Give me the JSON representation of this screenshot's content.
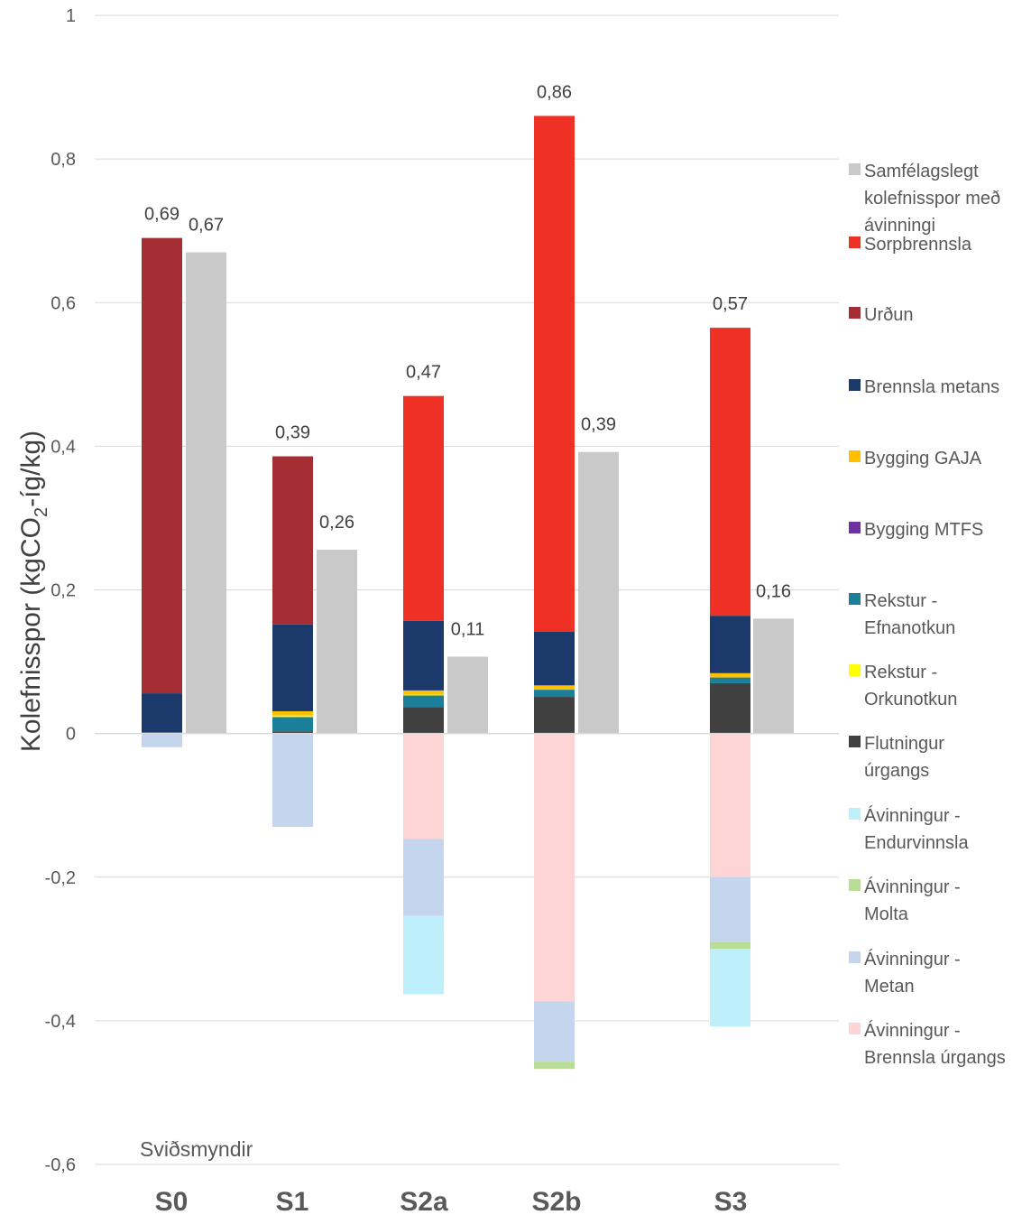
{
  "chart_data": {
    "type": "bar",
    "stacked": true,
    "ylabel": "Kolefnisspor (kgCO2-íg/kg)",
    "ylabel_parts": {
      "before": "Kolefnisspor (kgCO",
      "sub": "2",
      "after": "-íg/kg)"
    },
    "xlabel": "Sviðsmyndir",
    "ylim": [
      -0.6,
      1
    ],
    "yticks": [
      "-0,6",
      "-0,4",
      "-0,2",
      "0",
      "0,2",
      "0,4",
      "0,6",
      "0,8",
      "1"
    ],
    "ytick_values": [
      -0.6,
      -0.4,
      -0.2,
      0,
      0.2,
      0.4,
      0.6,
      0.8,
      1
    ],
    "grid": true,
    "legend_position": "right",
    "categories": [
      "S0",
      "S1",
      "S2a",
      "S2b",
      "S3"
    ],
    "stack_series": [
      {
        "name": "Flutningur úrgangs",
        "legend_lines": [
          "Flutningur",
          "úrgangs"
        ],
        "color": "#404040",
        "values": [
          0.0,
          0.003,
          0.037,
          0.051,
          0.07
        ]
      },
      {
        "name": "Rekstur - Efnanotkun",
        "legend_lines": [
          "Rekstur -",
          "Efnanotkun"
        ],
        "color": "#1B7F9A",
        "values": [
          0.002,
          0.02,
          0.016,
          0.01,
          0.008
        ]
      },
      {
        "name": "Rekstur - Orkunotkun",
        "legend_lines": [
          "Rekstur -",
          "Orkunotkun"
        ],
        "color": "#FFFF00",
        "values": [
          0.0,
          0.002,
          0.001,
          0.0,
          0.0
        ]
      },
      {
        "name": "Bygging MTFS",
        "legend_lines": [
          "Bygging MTFS"
        ],
        "color": "#7030A0",
        "values": [
          0.0,
          0.0,
          0.0,
          0.0,
          0.0
        ]
      },
      {
        "name": "Bygging GAJA",
        "legend_lines": [
          "Bygging GAJA"
        ],
        "color": "#FFC000",
        "values": [
          0.0,
          0.006,
          0.006,
          0.006,
          0.006
        ]
      },
      {
        "name": "Brennsla metans",
        "legend_lines": [
          "Brennsla metans"
        ],
        "color": "#1B3A6B",
        "values": [
          0.054,
          0.121,
          0.097,
          0.075,
          0.08
        ]
      },
      {
        "name": "Urðun",
        "legend_lines": [
          "Urðun"
        ],
        "color": "#A52D34",
        "values": [
          0.634,
          0.234,
          0.0,
          0.0,
          0.0
        ]
      },
      {
        "name": "Sorpbrennsla",
        "legend_lines": [
          "Sorpbrennsla"
        ],
        "color": "#EE3124",
        "values": [
          0.0,
          0.0,
          0.313,
          0.718,
          0.401
        ]
      },
      {
        "name": "Ávinningur - Brennsla úrgangs",
        "legend_lines": [
          "Ávinningur -",
          "Brennsla úrgangs"
        ],
        "color": "#FCD5D4",
        "values": [
          0.0,
          0.0,
          -0.147,
          -0.373,
          -0.2
        ]
      },
      {
        "name": "Ávinningur - Metan",
        "legend_lines": [
          "Ávinningur -",
          "Metan"
        ],
        "color": "#C5D5EE",
        "values": [
          -0.019,
          -0.13,
          -0.107,
          -0.084,
          -0.09
        ]
      },
      {
        "name": "Ávinningur - Molta",
        "legend_lines": [
          "Ávinningur -",
          "Molta"
        ],
        "color": "#B7DE94",
        "values": [
          0.0,
          0.0,
          0.0,
          -0.01,
          -0.01
        ]
      },
      {
        "name": "Ávinningur - Endurvinnsla",
        "legend_lines": [
          "Ávinningur -",
          "Endurvinnsla"
        ],
        "color": "#BDF0FB",
        "values": [
          0.0,
          0.0,
          -0.109,
          0.0,
          -0.108
        ]
      }
    ],
    "net_series": {
      "name": "Samfélagslegt kolefnisspor með ávinningi",
      "legend_lines": [
        "Samfélagslegt",
        "kolefnisspor með",
        "ávinningi"
      ],
      "color": "#C9C9C9",
      "values": [
        0.67,
        0.256,
        0.107,
        0.392,
        0.16
      ]
    },
    "stack_total_labels": [
      "0,69",
      "0,39",
      "0,47",
      "0,86",
      "0,57"
    ],
    "net_labels": [
      "0,67",
      "0,26",
      "0,11",
      "0,39",
      "0,16"
    ],
    "legend_order": [
      "Samfélagslegt kolefnisspor með ávinningi",
      "Sorpbrennsla",
      "Urðun",
      "Brennsla metans",
      "Bygging GAJA",
      "Bygging MTFS",
      "Rekstur - Efnanotkun",
      "Rekstur - Orkunotkun",
      "Flutningur úrgangs",
      "Ávinningur - Endurvinnsla",
      "Ávinningur - Molta",
      "Ávinningur - Metan",
      "Ávinningur - Brennsla úrgangs"
    ]
  }
}
